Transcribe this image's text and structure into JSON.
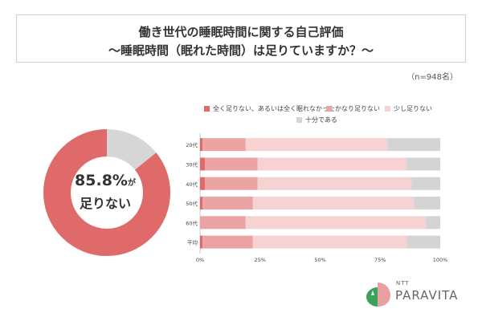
{
  "header": {
    "title_line1": "働き世代の睡眠時間に関する自己評価",
    "title_line2": "～睡眠時間（眠れた時間）は足りていますか？～",
    "sample_size": "（n=948名）"
  },
  "donut": {
    "percent_value": 85.8,
    "percent_text": "85.8%",
    "suffix_text": "が",
    "label_text": "足りない",
    "colors": {
      "main": "#e06a6a",
      "rest": "#d6d6d6"
    }
  },
  "chart_data": {
    "type": "bar",
    "orientation": "horizontal",
    "stacked": true,
    "categories": [
      "20代",
      "30代",
      "40代",
      "50代",
      "60代",
      "平均"
    ],
    "series": [
      {
        "name": "全く足りない、あるいは全く眠れなかった",
        "color": "#e06a6a",
        "values": [
          1,
          2,
          2,
          1,
          0,
          1
        ]
      },
      {
        "name": "かなり足りない",
        "color": "#eca3a3",
        "values": [
          18,
          22,
          22,
          21,
          19,
          21
        ]
      },
      {
        "name": "少し足りない",
        "color": "#f6d2d2",
        "values": [
          59,
          62,
          64,
          67,
          75,
          64
        ]
      },
      {
        "name": "十分である",
        "color": "#d4d4d4",
        "values": [
          22,
          14,
          12,
          11,
          6,
          14
        ]
      }
    ],
    "x_ticks": [
      "0%",
      "25%",
      "50%",
      "75%",
      "100%"
    ],
    "xlim": [
      0,
      100
    ],
    "legend": "top",
    "grid": false
  },
  "logo": {
    "small_text": "NTT",
    "big_text": "PARAVITA",
    "colors": {
      "green": "#3aa35a",
      "pink": "#e9a0a0"
    }
  }
}
